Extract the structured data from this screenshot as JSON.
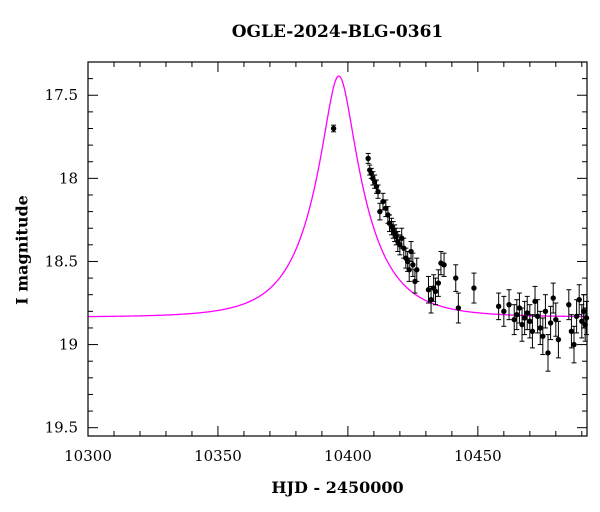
{
  "chart_data": {
    "type": "scatter",
    "title": "OGLE-2024-BLG-0361",
    "xlabel": "HJD - 2450000",
    "ylabel": "I magnitude",
    "xlim": [
      10300,
      10492
    ],
    "ylim": [
      19.55,
      17.3
    ],
    "y_inverted": true,
    "xticks": [
      10300,
      10350,
      10400,
      10450
    ],
    "yticks": [
      17.5,
      18,
      18.5,
      19,
      19.5
    ],
    "colors": {
      "model": "#ff00ff",
      "points": "#000000"
    },
    "series": [
      {
        "type": "scatter_with_errorbars",
        "points": [
          [
            10394.5,
            17.7,
            0.02
          ],
          [
            10407.8,
            17.88,
            0.03
          ],
          [
            10408.4,
            17.95,
            0.03
          ],
          [
            10409.0,
            17.97,
            0.03
          ],
          [
            10409.6,
            18.0,
            0.04
          ],
          [
            10410.3,
            18.02,
            0.04
          ],
          [
            10411.0,
            18.05,
            0.04
          ],
          [
            10411.6,
            18.08,
            0.04
          ],
          [
            10412.3,
            18.2,
            0.05
          ],
          [
            10413.5,
            18.14,
            0.05
          ],
          [
            10414.6,
            18.18,
            0.05
          ],
          [
            10415.4,
            18.22,
            0.05
          ],
          [
            10416.0,
            18.27,
            0.05
          ],
          [
            10416.8,
            18.29,
            0.05
          ],
          [
            10417.4,
            18.31,
            0.05
          ],
          [
            10418.0,
            18.33,
            0.05
          ],
          [
            10418.6,
            18.35,
            0.05
          ],
          [
            10419.2,
            18.38,
            0.06
          ],
          [
            10420.0,
            18.4,
            0.06
          ],
          [
            10420.7,
            18.36,
            0.06
          ],
          [
            10421.5,
            18.42,
            0.06
          ],
          [
            10422.3,
            18.48,
            0.06
          ],
          [
            10423.0,
            18.5,
            0.06
          ],
          [
            10423.6,
            18.55,
            0.07
          ],
          [
            10424.3,
            18.44,
            0.06
          ],
          [
            10425.0,
            18.52,
            0.07
          ],
          [
            10425.8,
            18.62,
            0.07
          ],
          [
            10426.5,
            18.55,
            0.07
          ],
          [
            10431.0,
            18.67,
            0.08
          ],
          [
            10432.0,
            18.73,
            0.08
          ],
          [
            10433.0,
            18.66,
            0.08
          ],
          [
            10433.7,
            18.68,
            0.08
          ],
          [
            10434.8,
            18.63,
            0.08
          ],
          [
            10435.8,
            18.51,
            0.07
          ],
          [
            10437.0,
            18.52,
            0.07
          ],
          [
            10441.5,
            18.6,
            0.08
          ],
          [
            10442.5,
            18.78,
            0.09
          ],
          [
            10448.5,
            18.66,
            0.09
          ],
          [
            10458.0,
            18.77,
            0.08
          ],
          [
            10460.0,
            18.8,
            0.09
          ],
          [
            10462.0,
            18.76,
            0.09
          ],
          [
            10464.0,
            18.85,
            0.09
          ],
          [
            10465.0,
            18.82,
            0.09
          ],
          [
            10466.0,
            18.78,
            0.09
          ],
          [
            10467.0,
            18.88,
            0.1
          ],
          [
            10468.0,
            18.84,
            0.1
          ],
          [
            10469.0,
            18.81,
            0.1
          ],
          [
            10470.0,
            18.86,
            0.1
          ],
          [
            10471.0,
            18.92,
            0.1
          ],
          [
            10472.0,
            18.74,
            0.09
          ],
          [
            10473.0,
            18.83,
            0.1
          ],
          [
            10474.0,
            18.9,
            0.1
          ],
          [
            10475.0,
            18.95,
            0.11
          ],
          [
            10476.0,
            18.8,
            0.1
          ],
          [
            10477.0,
            19.05,
            0.11
          ],
          [
            10478.0,
            18.87,
            0.1
          ],
          [
            10479.0,
            18.72,
            0.09
          ],
          [
            10480.0,
            18.85,
            0.1
          ],
          [
            10481.0,
            18.97,
            0.11
          ],
          [
            10485.0,
            18.76,
            0.09
          ],
          [
            10486.0,
            18.92,
            0.1
          ],
          [
            10487.0,
            19.0,
            0.11
          ],
          [
            10488.0,
            18.83,
            0.1
          ],
          [
            10489.0,
            18.73,
            0.09
          ],
          [
            10490.0,
            18.86,
            0.1
          ],
          [
            10490.7,
            18.8,
            0.1
          ],
          [
            10491.3,
            18.88,
            0.1
          ],
          [
            10491.8,
            18.84,
            0.1
          ]
        ]
      },
      {
        "type": "model_curve",
        "t0": 10396.5,
        "tE": 20,
        "u0": 0.27,
        "baseline_mag": 18.835
      }
    ]
  }
}
